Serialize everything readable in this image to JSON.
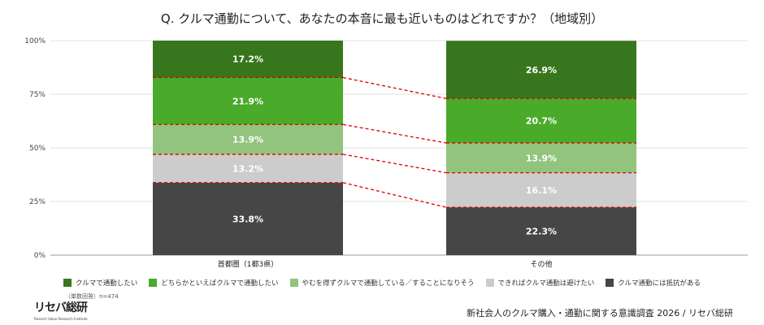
{
  "title": "Q. クルマ通勤について、あなたの本音に最も近いものはどれですか？（地域別）",
  "watermark": {
    "main": "リセバ総研",
    "sub": "Resarch Value Research Institute"
  },
  "chart_data": {
    "type": "bar",
    "stacked": true,
    "title": "Q. クルマ通勤について、あなたの本音に最も近いものはどれですか？（地域別）",
    "categories": [
      "首都圏（1都3県）",
      "その他"
    ],
    "ylim": [
      0,
      100
    ],
    "yticks": [
      "0%",
      "25%",
      "50%",
      "75%",
      "100%"
    ],
    "ytick_values": [
      0,
      25,
      50,
      75,
      100
    ],
    "legend_position": "bottom",
    "series": [
      {
        "name": "クルマ通勤には抵抗がある",
        "color": "#464646",
        "values": [
          33.8,
          22.3
        ],
        "labels": [
          "33.8%",
          "22.3%"
        ]
      },
      {
        "name": "できればクルマ通勤は避けたい",
        "color": "#cccccc",
        "values": [
          13.2,
          16.1
        ],
        "labels": [
          "13.2%",
          "16.1%"
        ]
      },
      {
        "name": "やむを得ずクルマで通勤している／することになりそう",
        "color": "#93c47d",
        "values": [
          13.9,
          13.9
        ],
        "labels": [
          "13.9%",
          "13.9%"
        ]
      },
      {
        "name": "どちらかといえばクルマで通勤したい",
        "color": "#4aaa2a",
        "values": [
          21.9,
          20.7
        ],
        "labels": [
          "21.9%",
          "20.7%"
        ]
      },
      {
        "name": "クルマで通勤したい",
        "color": "#38761d",
        "values": [
          17.2,
          26.9
        ],
        "labels": [
          "17.2%",
          "26.9%"
        ]
      }
    ],
    "legend_order": [
      4,
      3,
      2,
      1,
      0
    ]
  },
  "footer": {
    "note": "（単数回答）n=474",
    "logo": "リセバ総研",
    "logo_sub": "Resarch Value Research Institute",
    "source": "新社会人のクルマ購入・通勤に関する意識調査 2026 / リセバ総研"
  }
}
